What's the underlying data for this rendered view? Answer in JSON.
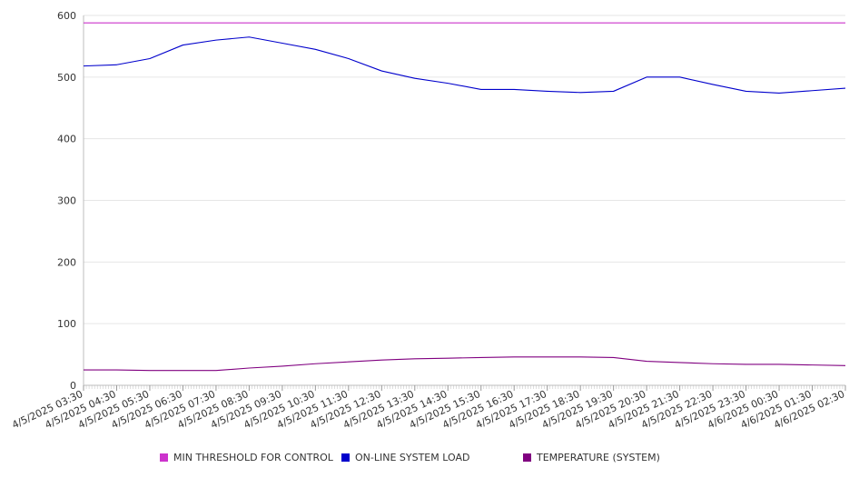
{
  "chart_data": {
    "type": "line",
    "x": [
      "4/5/2025 03:30",
      "4/5/2025 04:30",
      "4/5/2025 05:30",
      "4/5/2025 06:30",
      "4/5/2025 07:30",
      "4/5/2025 08:30",
      "4/5/2025 09:30",
      "4/5/2025 10:30",
      "4/5/2025 11:30",
      "4/5/2025 12:30",
      "4/5/2025 13:30",
      "4/5/2025 14:30",
      "4/5/2025 15:30",
      "4/5/2025 16:30",
      "4/5/2025 17:30",
      "4/5/2025 18:30",
      "4/5/2025 19:30",
      "4/5/2025 20:30",
      "4/5/2025 21:30",
      "4/5/2025 22:30",
      "4/5/2025 23:30",
      "4/6/2025 00:30",
      "4/6/2025 01:30",
      "4/6/2025 02:30"
    ],
    "ylim": [
      0,
      600
    ],
    "yticks": [
      "0",
      "100",
      "200",
      "300",
      "400",
      "500",
      "600"
    ],
    "grid": true,
    "legend_position": "bottom",
    "series": [
      {
        "name": "MIN THRESHOLD FOR CONTROL",
        "color": "#cc33cc",
        "values": [
          588,
          588,
          588,
          588,
          588,
          588,
          588,
          588,
          588,
          588,
          588,
          588,
          588,
          588,
          588,
          588,
          588,
          588,
          588,
          588,
          588,
          588,
          588,
          588
        ]
      },
      {
        "name": "ON-LINE SYSTEM LOAD",
        "color": "#0000cc",
        "values": [
          518,
          520,
          530,
          552,
          560,
          565,
          555,
          545,
          530,
          510,
          498,
          490,
          480,
          480,
          477,
          475,
          477,
          500,
          500,
          488,
          477,
          474,
          478,
          482
        ]
      },
      {
        "name": "TEMPERATURE (SYSTEM)",
        "color": "#800080",
        "values": [
          25,
          25,
          24,
          24,
          24,
          28,
          31,
          35,
          38,
          41,
          43,
          44,
          45,
          46,
          46,
          46,
          45,
          39,
          37,
          35,
          34,
          34,
          33,
          32
        ]
      }
    ]
  }
}
